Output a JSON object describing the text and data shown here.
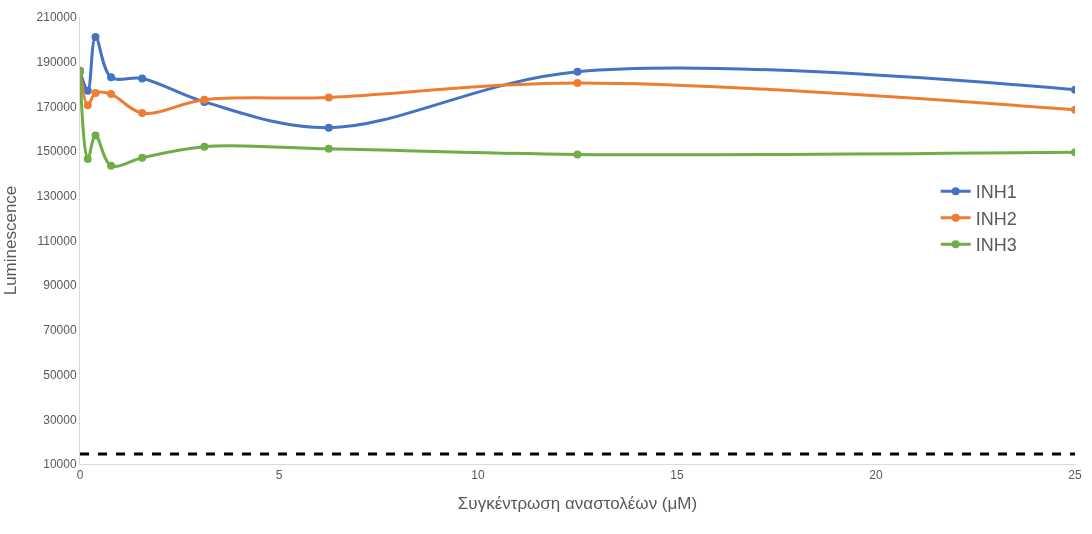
{
  "chart_data": {
    "type": "line",
    "xlabel": "Συγκέντρωση αναστολέων (μM)",
    "ylabel": "Luminescence",
    "x": [
      0,
      0.195,
      0.39,
      0.78,
      1.5625,
      3.125,
      6.25,
      12.5,
      25
    ],
    "series": [
      {
        "name": "INH1",
        "color": "#4472c4",
        "values": [
          186000,
          177000,
          201000,
          183000,
          182500,
          172000,
          160500,
          185500,
          177500
        ]
      },
      {
        "name": "INH2",
        "color": "#ed7d31",
        "values": [
          186000,
          170500,
          176000,
          175500,
          167000,
          173000,
          174000,
          180500,
          168500
        ]
      },
      {
        "name": "INH3",
        "color": "#70ad47",
        "values": [
          185500,
          146500,
          157000,
          143500,
          147000,
          152000,
          151000,
          148500,
          149500
        ]
      }
    ],
    "xlim": [
      0,
      25
    ],
    "xticks": [
      0,
      5,
      10,
      15,
      20,
      25
    ],
    "ylim": [
      10000,
      210000
    ],
    "yticks": [
      10000,
      30000,
      50000,
      70000,
      90000,
      110000,
      130000,
      150000,
      170000,
      190000,
      210000
    ],
    "ref_lines": [
      {
        "axis": "y",
        "value": 14500,
        "color": "#000000",
        "line_style": "dashed"
      }
    ],
    "marker": "circle",
    "line_style": "solid",
    "grid": false,
    "legend": "right"
  }
}
